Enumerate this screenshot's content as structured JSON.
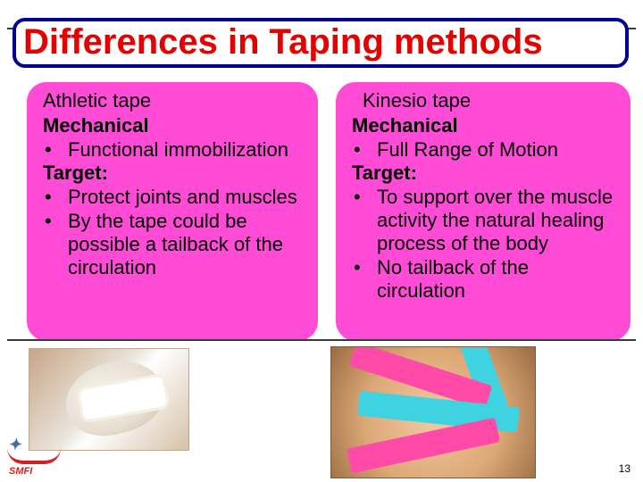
{
  "colors": {
    "title_text": "#e70000",
    "title_border": "#000099",
    "panel_bg": "#ff4bd6",
    "rule": "#3a3a3a",
    "kinesio_pink": "#ff4aa8",
    "kinesio_blue": "#3fd3e2",
    "logo_primary": "#d42020",
    "logo_secondary": "#4a6aa0"
  },
  "title": "Differences in Taping methods",
  "left": {
    "title": "Athletic tape",
    "sub1": "Mechanical",
    "bullets1": [
      "Functional immobilization"
    ],
    "sub2": "Target:",
    "bullets2": [
      "Protect joints and muscles",
      "By the tape could be possible a tailback of the circulation"
    ]
  },
  "right": {
    "title": "Kinesio tape",
    "sub1": "Mechanical",
    "bullets1": [
      "Full Range of Motion"
    ],
    "sub2": "Target:",
    "bullets2": [
      "To support over the muscle activity the natural healing process of the body",
      "No tailback of the circulation"
    ]
  },
  "logo_text": "SMFI",
  "page_number": "13"
}
